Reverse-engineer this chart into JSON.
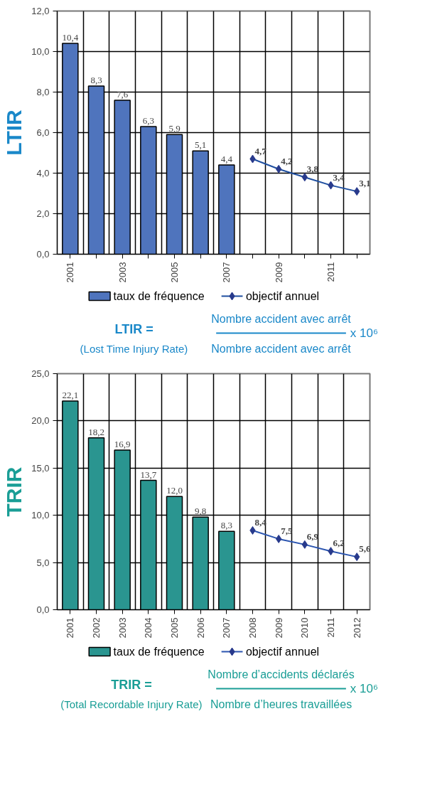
{
  "chart_data": [
    {
      "type": "bar",
      "ylabel": "LTIR",
      "categories": [
        "2001",
        null,
        "2003",
        null,
        "2005",
        null,
        "2007",
        null,
        "2009",
        null,
        "2011",
        null
      ],
      "series": [
        {
          "name": "taux de fréquence",
          "color": "#4f74bd",
          "values": [
            10.4,
            8.3,
            7.6,
            6.3,
            5.9,
            5.1,
            4.4,
            null,
            null,
            null,
            null,
            null
          ],
          "value_labels": [
            "10,4",
            "8,3",
            "7,6",
            "6,3",
            "5,9",
            "5,1",
            "4,4",
            null,
            null,
            null,
            null,
            null
          ]
        },
        {
          "name": "objectif annuel",
          "type": "line",
          "color": "#1f4fa0",
          "marker": "diamond",
          "values": [
            null,
            null,
            null,
            null,
            null,
            null,
            null,
            4.7,
            4.2,
            3.8,
            3.4,
            3.1
          ],
          "value_labels": [
            null,
            null,
            null,
            null,
            null,
            null,
            null,
            "4,7",
            "4,2",
            "3,8",
            "3,4",
            "3,1"
          ]
        }
      ],
      "ylim": [
        0,
        12
      ],
      "yticks": [
        {
          "value": 0,
          "label": "0,0"
        },
        {
          "value": 2,
          "label": "2,0"
        },
        {
          "value": 4,
          "label": "4,0"
        },
        {
          "value": 6,
          "label": "6,0"
        },
        {
          "value": 8,
          "label": "8,0"
        },
        {
          "value": 10,
          "label": "10,0"
        },
        {
          "value": 12,
          "label": "12,0"
        }
      ],
      "grid": true,
      "legend": "bottom",
      "annotations": [
        "LTIR =",
        "(Lost Time Injury Rate)",
        "Nombre accident avec arrêt",
        "Nombre accident avec arrêt",
        "x 10⁶"
      ]
    },
    {
      "type": "bar",
      "ylabel": "TRIR",
      "categories": [
        "2001",
        "2002",
        "2003",
        "2004",
        "2005",
        "2006",
        "2007",
        "2008",
        "2009",
        "2010",
        "2011",
        "2012"
      ],
      "series": [
        {
          "name": "taux de fréquence",
          "color": "#2a9590",
          "values": [
            22.1,
            18.2,
            16.9,
            13.7,
            12.0,
            9.8,
            8.3,
            null,
            null,
            null,
            null,
            null
          ],
          "value_labels": [
            "22,1",
            "18,2",
            "16,9",
            "13,7",
            "12,0",
            "9,8",
            "8,3",
            null,
            null,
            null,
            null,
            null
          ]
        },
        {
          "name": "objectif annuel",
          "type": "line",
          "color": "#2b55b0",
          "marker": "diamond",
          "values": [
            null,
            null,
            null,
            null,
            null,
            null,
            null,
            8.4,
            7.5,
            6.9,
            6.2,
            5.6
          ],
          "value_labels": [
            null,
            null,
            null,
            null,
            null,
            null,
            null,
            "8,4",
            "7,5",
            "6,9",
            "6,2",
            "5,6"
          ]
        }
      ],
      "ylim": [
        0,
        25
      ],
      "yticks": [
        {
          "value": 0,
          "label": "0,0"
        },
        {
          "value": 5,
          "label": "5,0"
        },
        {
          "value": 10,
          "label": "10,0"
        },
        {
          "value": 15,
          "label": "15,0"
        },
        {
          "value": 20,
          "label": "20,0"
        },
        {
          "value": 25,
          "label": "25,0"
        }
      ],
      "grid": true,
      "legend": "bottom",
      "annotations": [
        "TRIR =",
        "(Total Recordable Injury Rate)",
        "Nombre d’accidents déclarés",
        "Nombre d’heures travaillées",
        "x 10⁶"
      ]
    }
  ]
}
